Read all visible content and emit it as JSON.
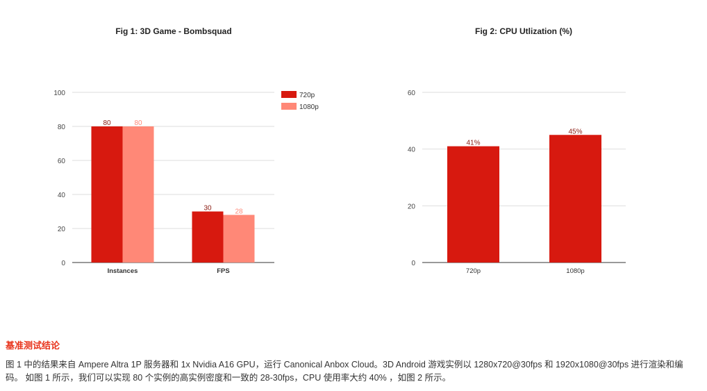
{
  "chart_data": [
    {
      "type": "bar",
      "title": "Fig 1: 3D Game - Bombsquad",
      "categories": [
        "Instances",
        "FPS"
      ],
      "series": [
        {
          "name": "720p",
          "values": [
            80,
            30
          ],
          "color": "#d7190f"
        },
        {
          "name": "1080p",
          "values": [
            80,
            28
          ],
          "color": "#ff8877"
        }
      ],
      "ylim": [
        0,
        100
      ],
      "yticks": [
        0,
        20,
        40,
        60,
        80,
        100
      ],
      "data_labels": [
        [
          "80",
          "30"
        ],
        [
          "80",
          "28"
        ]
      ],
      "legend": "right",
      "grid": true
    },
    {
      "type": "bar",
      "title": "Fig 2: CPU Utlization (%)",
      "categories": [
        "720p",
        "1080p"
      ],
      "series": [
        {
          "values": [
            41,
            45
          ],
          "color": "#d7190f"
        }
      ],
      "ylim": [
        0,
        60
      ],
      "yticks": [
        0,
        20,
        40,
        60
      ],
      "data_labels": [
        [
          "41%",
          "45%"
        ]
      ],
      "legend": "none",
      "grid": true
    }
  ],
  "text": {
    "heading": "基准测试结论",
    "paragraph": "图 1 中的结果来自 Ampere Altra 1P 服务器和 1x Nvidia A16 GPU，运行 Canonical Anbox Cloud。3D Android 游戏实例以 1280x720@30fps 和 1920x1080@30fps 进行渲染和编码。 如图 1 所示，我们可以实现 80 个实例的高实例密度和一致的 28-30fps，CPU 使用率大约 40% ，如图 2 所示。"
  }
}
